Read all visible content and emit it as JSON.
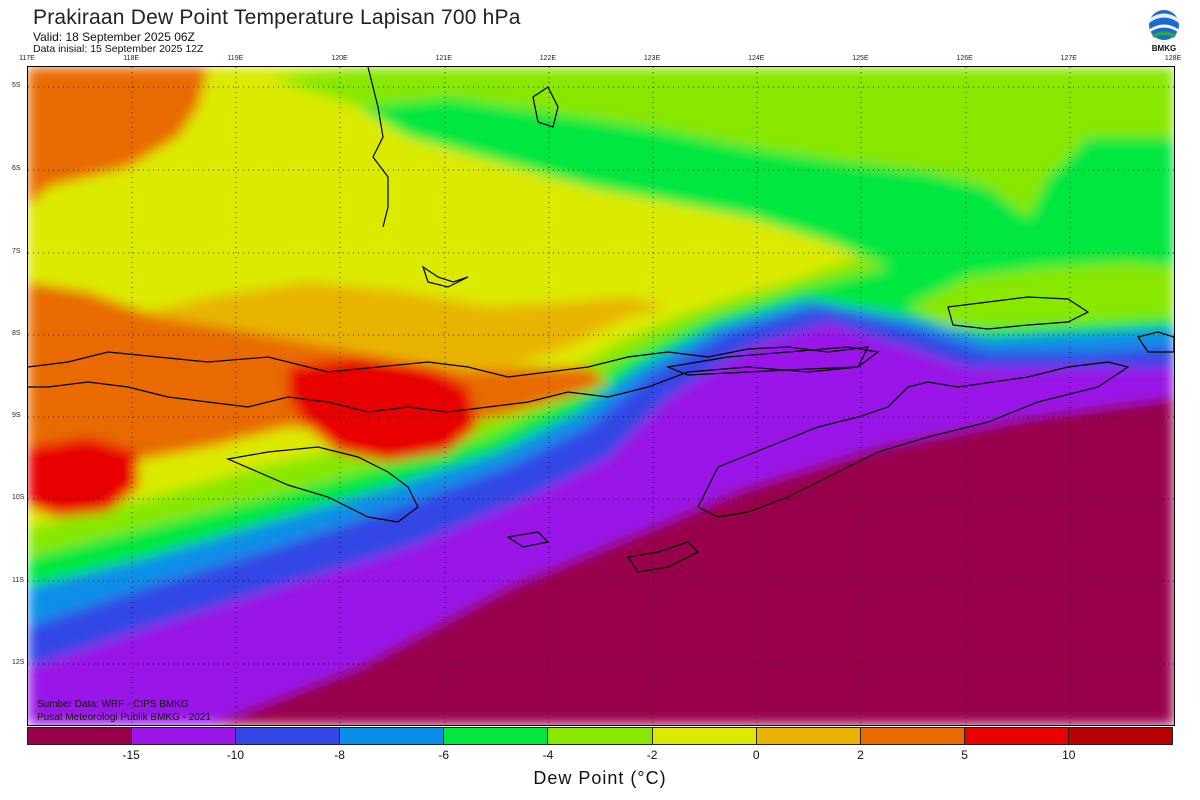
{
  "header": {
    "title": "Prakiraan Dew Point Temperature Lapisan 700 hPa",
    "valid": "Valid: 18 September 2025 06Z",
    "initial": "Data inisial: 15 September 2025 12Z"
  },
  "logo": {
    "text": "BMKG",
    "icon": "bmkg-logo-icon"
  },
  "map": {
    "lon_labels": [
      "117E",
      "118E",
      "119E",
      "120E",
      "121E",
      "122E",
      "123E",
      "124E",
      "125E",
      "126E",
      "127E",
      "128E"
    ],
    "lat_labels": [
      "5S",
      "6S",
      "7S",
      "8S",
      "9S",
      "10S",
      "11S",
      "12S"
    ],
    "field_colors": {
      "lt_minus15": "#99004c",
      "minus15_minus10": "#9a16e8",
      "minus10_minus8": "#3346e6",
      "minus8_minus6": "#0a8fe8",
      "minus6_minus4": "#00e840",
      "minus4_minus2": "#88e800",
      "minus2_0": "#dcea00",
      "0_2": "#e8b400",
      "2_5": "#e86a00",
      "5_10": "#e80000",
      "gt_10": "#b80000"
    },
    "coastline_color": "#000000"
  },
  "credits": {
    "line1": "Sumber Data: WRF - CIPS BMKG",
    "line2": "Pusat Meteorologi Publik BMKG - 2021"
  },
  "colorbar": {
    "colors": [
      "#99004c",
      "#9a16e8",
      "#3346e6",
      "#0a8fe8",
      "#00e840",
      "#88e800",
      "#dcea00",
      "#e8b400",
      "#e86a00",
      "#e80000",
      "#b80000"
    ],
    "ticks": [
      "-15",
      "-10",
      "-8",
      "-6",
      "-4",
      "-2",
      "0",
      "2",
      "5",
      "10"
    ],
    "label": "Dew Point (°C)"
  }
}
